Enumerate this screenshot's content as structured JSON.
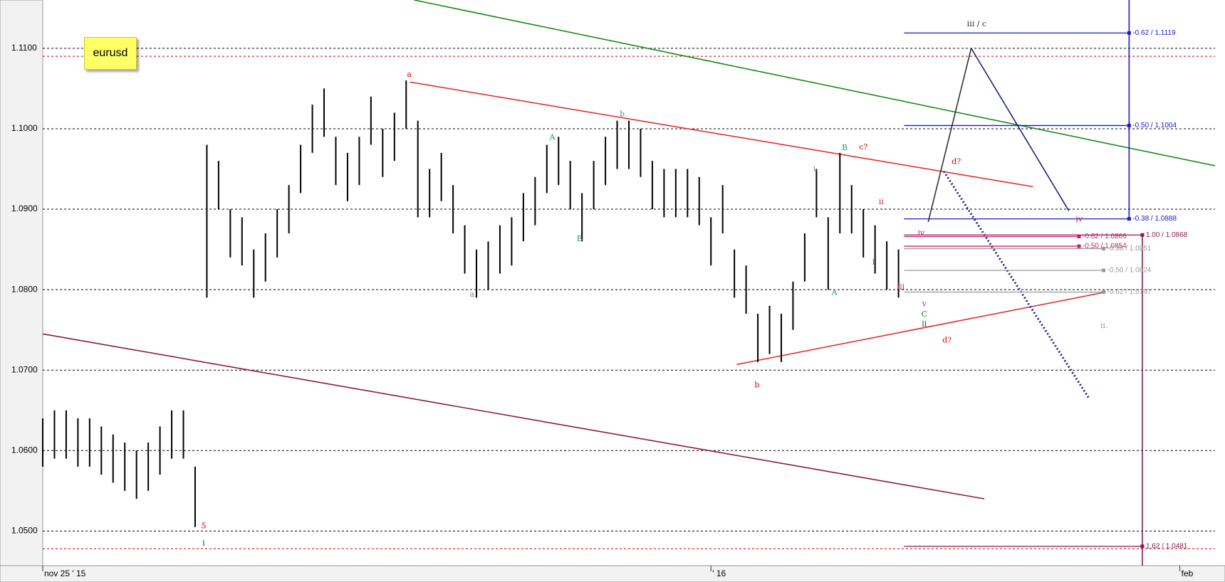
{
  "chart_data": {
    "type": "ohlc",
    "title": "eurusd",
    "xlim": [
      0,
      100
    ],
    "xticks": [
      {
        "value": 0,
        "label": "nov 25 ' 15"
      },
      {
        "value": 57,
        "label": "' 16"
      },
      {
        "value": 97,
        "label": "feb"
      }
    ],
    "ylim": [
      1.0457,
      1.116
    ],
    "yticks": [
      {
        "value": 1.05,
        "label": "1.0500"
      },
      {
        "value": 1.06,
        "label": "1.0600"
      },
      {
        "value": 1.07,
        "label": "1.0700"
      },
      {
        "value": 1.08,
        "label": "1.0800"
      },
      {
        "value": 1.09,
        "label": "1.0900"
      },
      {
        "value": 1.1,
        "label": "1.1000"
      },
      {
        "value": 1.11,
        "label": "1.1100"
      }
    ],
    "grid": true,
    "color": "#000000",
    "x": [
      0,
      1,
      2,
      3,
      4,
      5,
      6,
      7,
      8,
      9,
      10,
      11,
      12,
      13,
      14,
      15,
      16,
      17,
      18,
      19,
      20,
      21,
      22,
      23,
      24,
      25,
      26,
      27,
      28,
      29,
      30,
      31,
      32,
      33,
      34,
      35,
      36,
      37,
      38,
      39,
      40,
      41,
      42,
      43,
      44,
      45,
      46,
      47,
      48,
      49,
      50,
      51,
      52,
      53,
      54,
      55,
      56,
      57,
      58,
      59,
      60,
      61,
      62,
      63,
      64,
      65,
      66,
      67,
      68,
      69,
      70,
      71,
      72,
      73
    ],
    "high": [
      1.064,
      1.065,
      1.065,
      1.064,
      1.064,
      1.063,
      1.062,
      1.061,
      1.06,
      1.061,
      1.063,
      1.065,
      1.065,
      1.058,
      1.098,
      1.096,
      1.09,
      1.089,
      1.085,
      1.087,
      1.09,
      1.093,
      1.098,
      1.103,
      1.105,
      1.099,
      1.097,
      1.099,
      1.104,
      1.1,
      1.102,
      1.106,
      1.101,
      1.095,
      1.097,
      1.093,
      1.088,
      1.085,
      1.086,
      1.088,
      1.089,
      1.092,
      1.094,
      1.098,
      1.099,
      1.096,
      1.092,
      1.096,
      1.099,
      1.101,
      1.101,
      1.1,
      1.096,
      1.095,
      1.095,
      1.095,
      1.094,
      1.089,
      1.093,
      1.085,
      1.083,
      1.077,
      1.078,
      1.077,
      1.081,
      1.087,
      1.095,
      1.089,
      1.097,
      1.093,
      1.09,
      1.088,
      1.086,
      1.085
    ],
    "low": [
      1.058,
      1.059,
      1.059,
      1.058,
      1.058,
      1.057,
      1.056,
      1.055,
      1.054,
      1.055,
      1.057,
      1.059,
      1.059,
      1.0505,
      1.079,
      1.09,
      1.084,
      1.083,
      1.079,
      1.081,
      1.084,
      1.087,
      1.092,
      1.097,
      1.099,
      1.093,
      1.091,
      1.093,
      1.098,
      1.094,
      1.096,
      1.1,
      1.089,
      1.089,
      1.091,
      1.087,
      1.082,
      1.079,
      1.08,
      1.082,
      1.083,
      1.086,
      1.088,
      1.092,
      1.093,
      1.09,
      1.086,
      1.09,
      1.093,
      1.095,
      1.095,
      1.094,
      1.09,
      1.089,
      1.089,
      1.089,
      1.088,
      1.083,
      1.087,
      1.079,
      1.077,
      1.071,
      1.072,
      1.071,
      1.075,
      1.081,
      1.089,
      1.08,
      1.087,
      1.087,
      1.084,
      1.082,
      1.08,
      1.079
    ],
    "ref_lines": [
      {
        "value": 1.109,
        "color": "#cc0000"
      },
      {
        "value": 1.0478,
        "color": "#cc0000"
      }
    ],
    "trendlines": [
      {
        "color": "#1a8a1a",
        "dotted": false,
        "points": [
          [
            31.67,
            1.116
          ],
          [
            100,
            1.0954
          ]
        ]
      },
      {
        "color": "#e03030",
        "dotted": false,
        "points": [
          [
            31.33,
            1.1058
          ],
          [
            84.47,
            1.0928
          ]
        ]
      },
      {
        "color": "#8b1a4a",
        "dotted": false,
        "points": [
          [
            0,
            1.0745
          ],
          [
            80.33,
            1.054
          ]
        ]
      },
      {
        "color": "#e03030",
        "dotted": false,
        "points": [
          [
            59.2,
            1.0707
          ],
          [
            90.67,
            1.0797
          ]
        ]
      },
      {
        "color": "#333333",
        "dotted": false,
        "points": [
          [
            75.53,
            1.0884
          ],
          [
            79.2,
            1.11
          ]
        ]
      },
      {
        "color": "#1a237e",
        "dotted": false,
        "points": [
          [
            79.2,
            1.11
          ],
          [
            87.53,
            1.0898
          ]
        ]
      },
      {
        "color": "#1a237e",
        "dotted": true,
        "points": [
          [
            76.87,
            1.0947
          ],
          [
            89.2,
            1.0666
          ]
        ]
      },
      {
        "color": "#1a1ad0",
        "dotted": false,
        "points": [
          [
            92.67,
            1.116
          ],
          [
            92.67,
            1.0888
          ]
        ]
      },
      {
        "color": "#8b1a4a",
        "dotted": false,
        "points": [
          [
            93.8,
            1.0868
          ],
          [
            93.8,
            1.0457
          ]
        ]
      }
    ],
    "levels": [
      {
        "label": "-0.62 / 1.1119",
        "value": 1.1119,
        "color": "#1a1ad0",
        "x1": 73.47,
        "x2": 92.67
      },
      {
        "label": "-0.50 / 1.1004",
        "value": 1.1004,
        "color": "#1a1ad0",
        "x1": 73.47,
        "x2": 92.67
      },
      {
        "label": "-0.38 / 1.0888",
        "value": 1.0888,
        "color": "#1a1ad0",
        "x1": 73.47,
        "x2": 92.67
      },
      {
        "label": "-0.62 / 1.0866",
        "value": 1.0866,
        "color": "#d0206a",
        "x1": 73.47,
        "x2": 88.4
      },
      {
        "label": "-0.50 / 1.0854",
        "value": 1.0854,
        "color": "#d0206a",
        "x1": 73.47,
        "x2": 88.4
      },
      {
        "label": "-0.38 / 1.0851",
        "value": 1.0851,
        "color": "#999999",
        "x1": 73.47,
        "x2": 90.5
      },
      {
        "label": "-0.50 / 1.0824",
        "value": 1.0824,
        "color": "#999999",
        "x1": 73.47,
        "x2": 90.5
      },
      {
        "label": "-0.62 / 1.0797",
        "value": 1.0797,
        "color": "#999999",
        "x1": 73.47,
        "x2": 90.5
      },
      {
        "label": "1.00 / 1.0868",
        "value": 1.0868,
        "color": "#8b1a4a",
        "x1": 73.47,
        "x2": 93.8
      },
      {
        "label": "1.62 / 1.0481",
        "value": 1.0481,
        "color": "#8b1a4a",
        "x1": 73.47,
        "x2": 93.8
      }
    ],
    "annotations": [
      {
        "text": "a",
        "x": 31.27,
        "y": 1.1067,
        "color": "#e00000"
      },
      {
        "text": "b.",
        "x": 49.53,
        "y": 1.1018,
        "color": "#888888"
      },
      {
        "text": "a.",
        "x": 36.73,
        "y": 1.0794,
        "color": "#888888"
      },
      {
        "text": "A",
        "x": 43.47,
        "y": 1.0989,
        "color": "#1a9a6a"
      },
      {
        "text": "B",
        "x": 45.8,
        "y": 1.0863,
        "color": "#1a9a6a"
      },
      {
        "text": "i.",
        "x": 65.93,
        "y": 1.095,
        "color": "#888888"
      },
      {
        "text": "B",
        "x": 68.4,
        "y": 1.0976,
        "color": "#1a9a6a"
      },
      {
        "text": "c?",
        "x": 70,
        "y": 1.0977,
        "color": "#e00000"
      },
      {
        "text": "d?",
        "x": 77.93,
        "y": 1.0959,
        "color": "#e00000"
      },
      {
        "text": "A",
        "x": 67.53,
        "y": 1.0796,
        "color": "#1a9a6a"
      },
      {
        "text": "ii",
        "x": 71.53,
        "y": 1.0909,
        "color": "#d0206a"
      },
      {
        "text": "i",
        "x": 70.87,
        "y": 1.0834,
        "color": "#d0206a"
      },
      {
        "text": "iii",
        "x": 73.2,
        "y": 1.0803,
        "color": "#d0206a"
      },
      {
        "text": "iv",
        "x": 74.93,
        "y": 1.087,
        "color": "#d0206a"
      },
      {
        "text": "v",
        "x": 75.2,
        "y": 1.0782,
        "color": "#d0206a"
      },
      {
        "text": "C",
        "x": 75.2,
        "y": 1.0769,
        "color": "#1a8a1a"
      },
      {
        "text": "ii",
        "x": 75.2,
        "y": 1.0757,
        "color": "#333333"
      },
      {
        "text": "d?",
        "x": 77.13,
        "y": 1.0737,
        "color": "#e00000"
      },
      {
        "text": "b",
        "x": 60.93,
        "y": 1.0681,
        "color": "#e00000"
      },
      {
        "text": "ii.",
        "x": 90.53,
        "y": 1.0755,
        "color": "#999999"
      },
      {
        "text": "iii / c",
        "x": 79.67,
        "y": 1.113,
        "color": "#333333"
      },
      {
        "text": "iv",
        "x": 88.4,
        "y": 1.0887,
        "color": "#d0206a"
      },
      {
        "text": "5",
        "x": 13.73,
        "y": 1.0506,
        "color": "#e00000"
      },
      {
        "text": "i",
        "x": 13.73,
        "y": 1.0485,
        "color": "#1a1ad0"
      }
    ]
  }
}
